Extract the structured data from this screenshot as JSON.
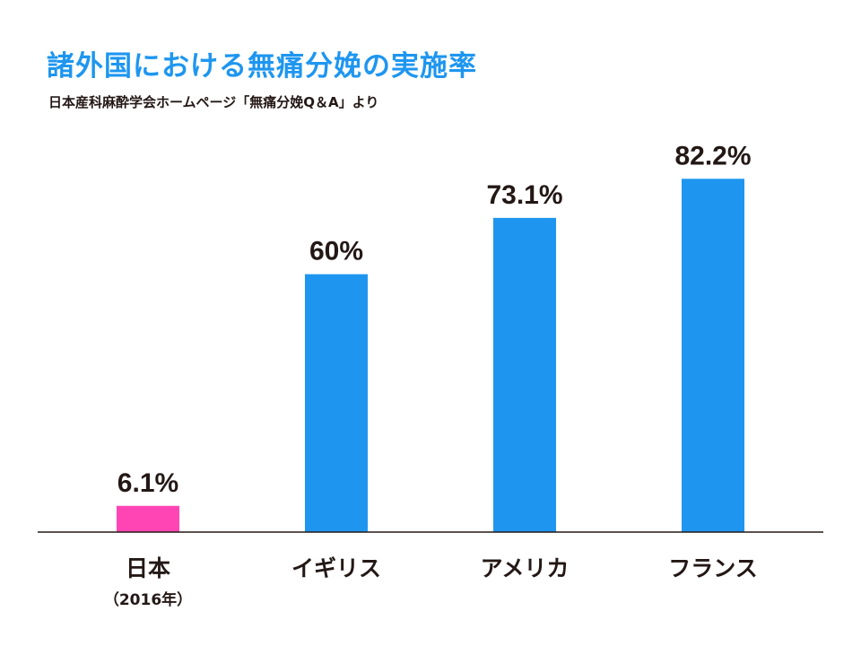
{
  "chart_data": {
    "type": "bar",
    "title": "諸外国における無痛分娩の実施率",
    "subtitle": "日本産科麻酔学会ホームページ「無痛分娩Q＆A」より",
    "categories": [
      "日本",
      "イギリス",
      "アメリカ",
      "フランス"
    ],
    "category_notes": [
      "（2016年）",
      "",
      "",
      ""
    ],
    "values": [
      6.1,
      60,
      73.1,
      82.2
    ],
    "value_labels": [
      "6.1%",
      "60%",
      "73.1%",
      "82.2%"
    ],
    "bar_colors": [
      "#ff45b4",
      "#1e96f0",
      "#1e96f0",
      "#1e96f0"
    ],
    "xlabel": "",
    "ylabel": "",
    "ylim": [
      0,
      100
    ],
    "grid": false
  }
}
